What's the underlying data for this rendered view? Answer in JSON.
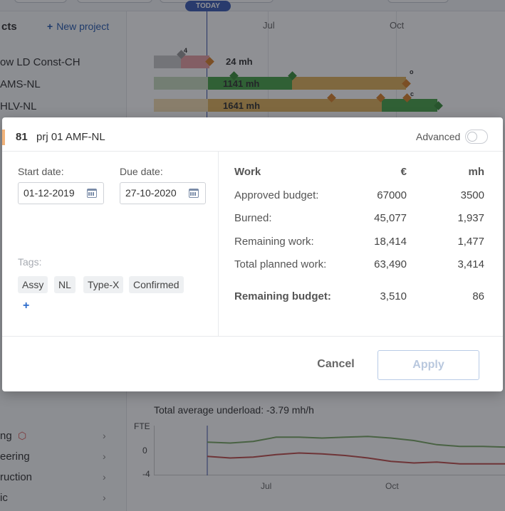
{
  "background": {
    "today_badge": "TODAY",
    "section_heading": "cts",
    "new_project_label": "New project",
    "new_project_icon": "plus-icon",
    "months_top": [
      "Jul",
      "Oct"
    ],
    "rows": [
      {
        "label": "ow LD Const-CH",
        "bar_label": "24 mh",
        "marker": "4"
      },
      {
        "label": "AMS-NL",
        "bar_label": "1141 mh",
        "marker": "o"
      },
      {
        "label": "HLV-NL",
        "bar_label": "1641 mh",
        "marker": "c"
      }
    ],
    "underload_text": "Total average underload: -3.79 mh/h",
    "nav_items": [
      "ng",
      "eering",
      "ruction",
      "ic"
    ],
    "chart_data": {
      "type": "line",
      "ylabel": "FTE",
      "yticks": [
        "0",
        "-4"
      ],
      "xticks": [
        "Jul",
        "Oct"
      ],
      "series": [
        {
          "color": "#7aa865",
          "values": [
            -0.5,
            -0.6,
            -0.4,
            0.1,
            0.1,
            0.0,
            0.1,
            0.2,
            0.0,
            -0.3,
            -0.8,
            -1.0,
            -1.0,
            -1.1
          ]
        },
        {
          "color": "#c0504d",
          "values": [
            -2.2,
            -2.4,
            -2.3,
            -2.0,
            -1.8,
            -1.9,
            -2.1,
            -2.4,
            -2.8,
            -3.0,
            -2.9,
            -3.1,
            -3.1,
            -3.1
          ]
        }
      ]
    }
  },
  "modal": {
    "project_id": "81",
    "project_name": "prj 01 AMF-NL",
    "advanced_label": "Advanced",
    "start_date_label": "Start date:",
    "start_date_value": "01-12-2019",
    "due_date_label": "Due date:",
    "due_date_value": "27-10-2020",
    "tags_label": "Tags:",
    "tags": [
      "Assy",
      "NL",
      "Type-X",
      "Confirmed"
    ],
    "add_tag_label": "+",
    "table": {
      "headers": [
        "Work",
        "€",
        "mh"
      ],
      "rows": [
        {
          "label": "Approved budget:",
          "eur": "67000",
          "mh": "3500"
        },
        {
          "label": "Burned:",
          "eur": "45,077",
          "mh": "1,937"
        },
        {
          "label": "Remaining work:",
          "eur": "18,414",
          "mh": "1,477"
        },
        {
          "label": "Total planned work:",
          "eur": "63,490",
          "mh": "3,414"
        }
      ],
      "summary": {
        "label": "Remaining budget:",
        "eur": "3,510",
        "mh": "86"
      }
    },
    "cancel_label": "Cancel",
    "apply_label": "Apply"
  }
}
